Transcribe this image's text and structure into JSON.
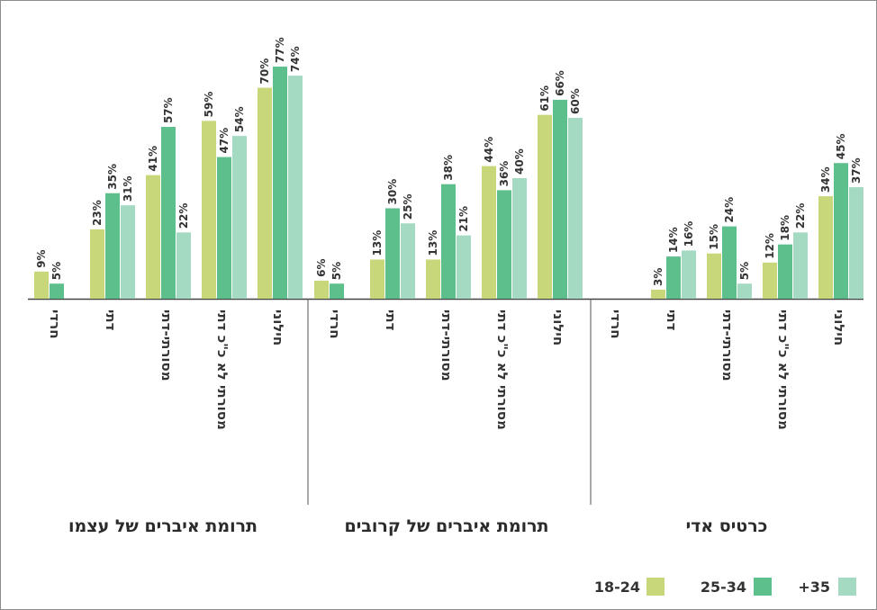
{
  "chart_data": {
    "type": "bar",
    "unit": "%",
    "series": [
      {
        "name": "18-24",
        "color": "#c9d77b"
      },
      {
        "name": "25-34",
        "color": "#5cbf8c"
      },
      {
        "name": "+35",
        "color": "#a5dac2"
      }
    ],
    "ylim": [
      0,
      85
    ],
    "legend_position": "bottom-right",
    "panels": [
      {
        "title": "תרומת איברים של עצמו",
        "categories": [
          "חרדי",
          "דתי",
          "מסורתי-דתי",
          "מסורתי לא כ\"כ דתי",
          "חילוני"
        ],
        "values": [
          [
            9,
            5,
            null
          ],
          [
            23,
            35,
            31
          ],
          [
            41,
            57,
            22
          ],
          [
            59,
            47,
            54
          ],
          [
            70,
            77,
            74
          ]
        ]
      },
      {
        "title": "תרומת איברים של קרובים",
        "categories": [
          "חרדי",
          "דתי",
          "מסורתי-דתי",
          "מסורתי לא כ\"כ דתי",
          "חילוני"
        ],
        "values": [
          [
            6,
            5,
            null
          ],
          [
            13,
            30,
            25
          ],
          [
            13,
            38,
            21
          ],
          [
            44,
            36,
            40
          ],
          [
            61,
            66,
            60
          ]
        ]
      },
      {
        "title": "כרטיס אדי",
        "categories": [
          "חרדי",
          "דתי",
          "מסורתי-דתי",
          "מסורתי לא כ\"כ דתי",
          "חילוני"
        ],
        "values": [
          [
            null,
            null,
            null
          ],
          [
            3,
            14,
            16
          ],
          [
            15,
            24,
            5
          ],
          [
            12,
            18,
            22
          ],
          [
            34,
            45,
            37
          ]
        ]
      }
    ]
  }
}
